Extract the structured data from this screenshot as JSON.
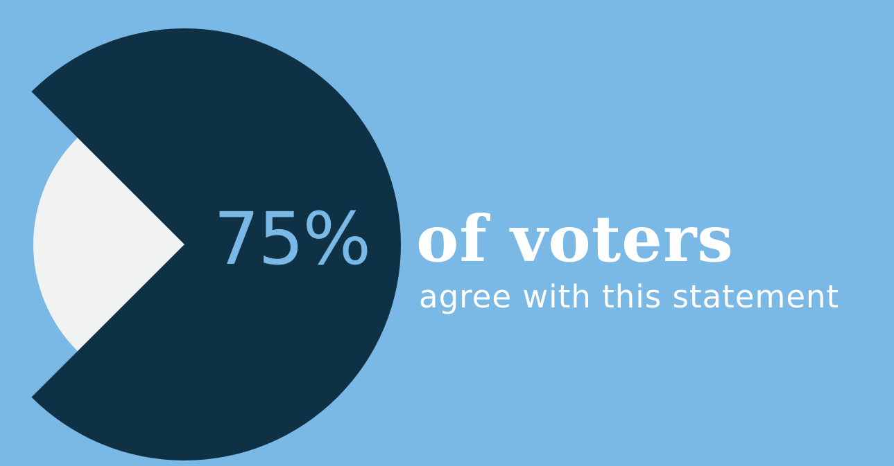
{
  "colors": {
    "background": "#7ab8e5",
    "majority_slice": "#0f3145",
    "minority_slice": "#f1f3f3",
    "percent_text": "#7ab8e5",
    "headline_text": "#ffffff"
  },
  "chart_data": {
    "type": "pie",
    "slices": [
      {
        "value": 75,
        "color": "#0f3145",
        "exploded": false
      },
      {
        "value": 25,
        "color": "#f1f3f3",
        "exploded": false
      }
    ],
    "title": "",
    "legend": "none"
  },
  "callout": {
    "percent": "75%",
    "headline": "of voters",
    "subline": "agree with this statement"
  }
}
